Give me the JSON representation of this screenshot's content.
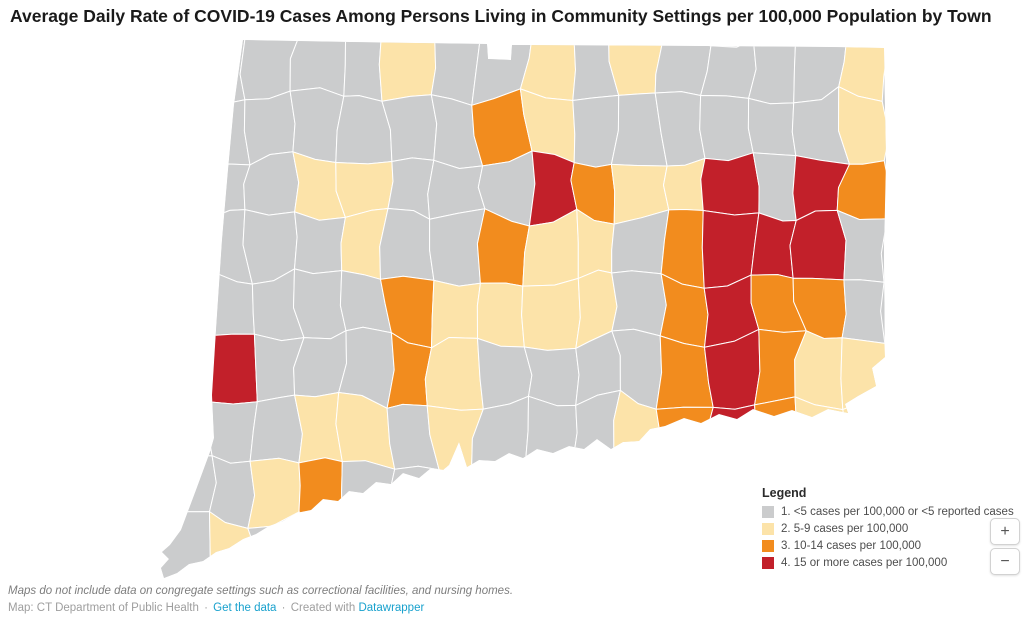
{
  "header": {
    "title": "Average Daily Rate of COVID-19 Cases Among Persons Living in Community Settings per 100,000 Population by Town"
  },
  "legend": {
    "title": "Legend",
    "items": [
      {
        "label": "1. <5 cases per 100,000 or <5 reported cases",
        "color_key": "G"
      },
      {
        "label": "2. 5-9 cases per 100,000",
        "color_key": "C"
      },
      {
        "label": "3. 10-14 cases per 100,000",
        "color_key": "O"
      },
      {
        "label": "4. 15 or more cases per 100,000",
        "color_key": "R"
      }
    ]
  },
  "zoom_controls": {
    "zoom_in_label": "+",
    "zoom_out_label": "−"
  },
  "footer": {
    "note": "Maps do not include data on congregate settings such as correctional facilities, and nursing homes.",
    "credit_prefix": "Map: CT Department of Public Health",
    "separator": "·",
    "get_data_link": "Get the data",
    "created_with": "Created with",
    "datawrapper_link": "Datawrapper"
  },
  "map": {
    "type": "choropleth",
    "region": "Connecticut towns",
    "palette": {
      "G": "#cbcccd",
      "C": "#fce3a9",
      "O": "#f28c1e",
      "R": "#c2202a"
    },
    "categories": {
      "G": "<5 cases per 100,000 or <5 reported cases",
      "C": "5-9 cases per 100,000",
      "O": "10-14 cases per 100,000",
      "R": "15 or more cases per 100,000"
    },
    "grid": [
      "GGGGGCGGCGCGGGGC",
      "GGGGGGGOCGGGGGGC",
      "GGGCCGGGROCCRGRO",
      "GGGGCGGOCCGORRRG",
      "GGGGGOCCCCGOROOG",
      "GRGGGOCGGGGOROCC",
      "GGGCCGCGGGCOROCC",
      "GGCOGGGGGGGGGGGG",
      "GCGGGGGGGGGGGGGG"
    ],
    "outline": [
      [
        243,
        40
      ],
      [
        350,
        42
      ],
      [
        487,
        44
      ],
      [
        488,
        59
      ],
      [
        511,
        60
      ],
      [
        512,
        45
      ],
      [
        700,
        46
      ],
      [
        830,
        47
      ],
      [
        884,
        48
      ],
      [
        886,
        160
      ],
      [
        884,
        250
      ],
      [
        885,
        357
      ],
      [
        872,
        368
      ],
      [
        876,
        386
      ],
      [
        858,
        396
      ],
      [
        845,
        404
      ],
      [
        848,
        413
      ],
      [
        828,
        409
      ],
      [
        812,
        417
      ],
      [
        792,
        410
      ],
      [
        774,
        416
      ],
      [
        753,
        409
      ],
      [
        737,
        419
      ],
      [
        719,
        414
      ],
      [
        701,
        423
      ],
      [
        684,
        418
      ],
      [
        665,
        426
      ],
      [
        650,
        429
      ],
      [
        639,
        441
      ],
      [
        623,
        442
      ],
      [
        611,
        449
      ],
      [
        597,
        439
      ],
      [
        584,
        449
      ],
      [
        569,
        446
      ],
      [
        553,
        453
      ],
      [
        537,
        449
      ],
      [
        523,
        458
      ],
      [
        509,
        453
      ],
      [
        495,
        461
      ],
      [
        479,
        460
      ],
      [
        467,
        467
      ],
      [
        459,
        442
      ],
      [
        449,
        465
      ],
      [
        443,
        470
      ],
      [
        431,
        468
      ],
      [
        419,
        478
      ],
      [
        403,
        473
      ],
      [
        391,
        484
      ],
      [
        376,
        482
      ],
      [
        363,
        493
      ],
      [
        349,
        491
      ],
      [
        338,
        501
      ],
      [
        323,
        499
      ],
      [
        311,
        510
      ],
      [
        296,
        513
      ],
      [
        283,
        521
      ],
      [
        269,
        526
      ],
      [
        256,
        534
      ],
      [
        243,
        539
      ],
      [
        229,
        548
      ],
      [
        216,
        552
      ],
      [
        203,
        561
      ],
      [
        189,
        564
      ],
      [
        177,
        573
      ],
      [
        164,
        578
      ],
      [
        161,
        568
      ],
      [
        169,
        559
      ],
      [
        162,
        552
      ],
      [
        170,
        545
      ],
      [
        181,
        530
      ],
      [
        196,
        490
      ],
      [
        210,
        452
      ],
      [
        214,
        438
      ],
      [
        212,
        395
      ],
      [
        216,
        330
      ],
      [
        222,
        240
      ],
      [
        228,
        170
      ],
      [
        234,
        105
      ],
      [
        243,
        40
      ]
    ]
  }
}
